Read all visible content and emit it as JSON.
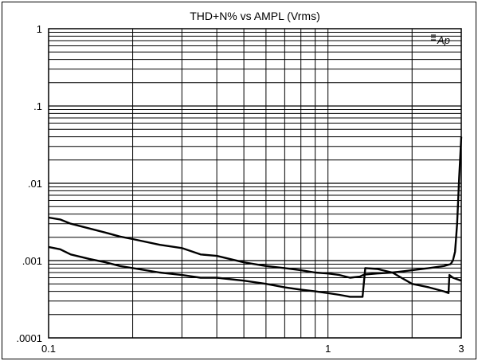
{
  "chart_data": {
    "type": "line",
    "title": "THD+N% vs AMPL (Vrms)",
    "xlabel": "",
    "ylabel": "",
    "x_scale": "log",
    "y_scale": "log",
    "xlim": [
      0.1,
      3
    ],
    "ylim": [
      0.0001,
      1
    ],
    "x_tick_labels": [
      {
        "value": 0.1,
        "label": "0.1"
      },
      {
        "value": 1,
        "label": "1"
      },
      {
        "value": 3,
        "label": "3"
      }
    ],
    "y_tick_labels": [
      {
        "value": 1,
        "label": "1"
      },
      {
        "value": 0.1,
        "label": ".1"
      },
      {
        "value": 0.01,
        "label": ".01"
      },
      {
        "value": 0.001,
        "label": ".001"
      },
      {
        "value": 0.0001,
        "label": ".0001"
      }
    ],
    "grid": true,
    "logo_text": "Ap",
    "series": [
      {
        "color": "#000000",
        "x": [
          0.1,
          0.11,
          0.12,
          0.14,
          0.16,
          0.18,
          0.2,
          0.25,
          0.3,
          0.35,
          0.4,
          0.5,
          0.6,
          0.7,
          0.8,
          0.9,
          1.0,
          1.1,
          1.2,
          1.3,
          1.35,
          1.5,
          1.7,
          2.0,
          2.3,
          2.6,
          2.75,
          2.8,
          2.85,
          2.9,
          2.95,
          3.0
        ],
        "y": [
          0.0036,
          0.0034,
          0.003,
          0.0026,
          0.0023,
          0.00205,
          0.0019,
          0.0016,
          0.00145,
          0.0012,
          0.00115,
          0.00095,
          0.00085,
          0.0008,
          0.00075,
          0.0007,
          0.00068,
          0.00065,
          0.0006,
          0.00062,
          0.00066,
          0.00068,
          0.0007,
          0.00075,
          0.0008,
          0.00085,
          0.0009,
          0.001,
          0.0013,
          0.003,
          0.012,
          0.04
        ]
      },
      {
        "color": "#000000",
        "x": [
          0.1,
          0.11,
          0.12,
          0.14,
          0.16,
          0.18,
          0.2,
          0.25,
          0.3,
          0.35,
          0.4,
          0.5,
          0.6,
          0.7,
          0.8,
          0.9,
          1.0,
          1.1,
          1.2,
          1.33,
          1.36,
          1.5,
          1.7,
          2.0,
          2.3,
          2.6,
          2.7,
          2.72,
          2.8,
          3.0
        ],
        "y": [
          0.0015,
          0.0014,
          0.0012,
          0.00105,
          0.00095,
          0.00085,
          0.0008,
          0.0007,
          0.00065,
          0.0006,
          0.0006,
          0.00055,
          0.0005,
          0.00045,
          0.00042,
          0.0004,
          0.00038,
          0.00036,
          0.00034,
          0.00034,
          0.0008,
          0.00078,
          0.0007,
          0.0005,
          0.00045,
          0.0004,
          0.00038,
          0.00065,
          0.0006,
          0.00055
        ]
      }
    ]
  }
}
